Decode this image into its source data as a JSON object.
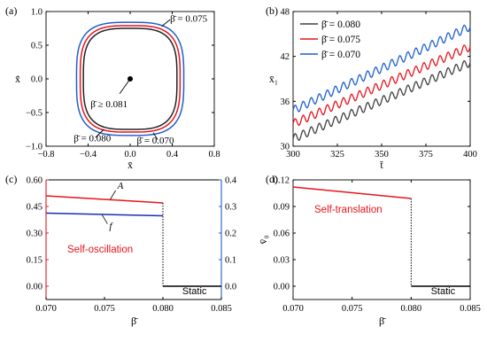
{
  "colors": {
    "red": "#e8141c",
    "blue": "#1f5fcc",
    "black": "#222222",
    "darkblue": "#1a2eb0",
    "gray": "#404040"
  },
  "panel_labels": [
    "(a)",
    "(b)",
    "(c)",
    "(d)"
  ],
  "chart_data": [
    {
      "panel": "(a)",
      "type": "line",
      "xlabel": "x̄",
      "ylabel": "x̄̇",
      "xlim": [
        -0.8,
        0.8
      ],
      "ylim": [
        -1.0,
        1.0
      ],
      "xticks": [
        "−0.8",
        "−0.4",
        "0.0",
        "0.4",
        "0.8"
      ],
      "yticks": [
        "−1.0",
        "−0.5",
        "0.0",
        "0.5",
        "1.0"
      ],
      "series": [
        {
          "name": "β̄ = 0.070",
          "color": "blue",
          "amplitude_x": 0.51,
          "amplitude_v": 0.84
        },
        {
          "name": "β̄ = 0.075",
          "color": "red",
          "amplitude_x": 0.475,
          "amplitude_v": 0.79
        },
        {
          "name": "β̄ = 0.080",
          "color": "black",
          "amplitude_x": 0.445,
          "amplitude_v": 0.75
        }
      ],
      "fixed_point": {
        "x": 0.0,
        "y": 0.0,
        "label": "β̄ ≥ 0.081"
      },
      "annotations": {
        "top": "β̄ = 0.075",
        "bottom_left": "β̄ = 0.080",
        "bottom_right": "β̄ = 0.070",
        "center": "β̄ ≥ 0.081"
      }
    },
    {
      "panel": "(b)",
      "type": "line",
      "xlabel": "t̄",
      "ylabel": "x̄₁",
      "xlim": [
        300,
        400
      ],
      "ylim": [
        30,
        48
      ],
      "xticks": [
        "300",
        "325",
        "350",
        "375",
        "400"
      ],
      "yticks": [
        "30",
        "36",
        "42",
        "48"
      ],
      "legend_position": "top-left",
      "series": [
        {
          "name": "β̄ = 0.080",
          "color": "gray",
          "start": 31.0,
          "end": 41.2,
          "wiggle": 0.55
        },
        {
          "name": "β̄ = 0.075",
          "color": "red",
          "start": 33.0,
          "end": 43.3,
          "wiggle": 0.55
        },
        {
          "name": "β̄ = 0.070",
          "color": "blue",
          "start": 34.8,
          "end": 46.0,
          "wiggle": 0.55
        }
      ],
      "periods": 22
    },
    {
      "panel": "(c)",
      "type": "line",
      "xlabel": "β̄",
      "ylabel_left": "A",
      "ylabel_right": "f",
      "xlim": [
        0.07,
        0.085
      ],
      "ylim_left": [
        -0.075,
        0.6
      ],
      "ylim_right": [
        -0.05,
        0.4
      ],
      "xticks": [
        "0.070",
        "0.075",
        "0.080",
        "0.085"
      ],
      "yticks_left": [
        "0.00",
        "0.15",
        "0.30",
        "0.45",
        "0.60"
      ],
      "yticks_right": [
        "0.0",
        "0.1",
        "0.2",
        "0.3",
        "0.4"
      ],
      "series": [
        {
          "name": "A",
          "color": "red",
          "axis": "left",
          "x": [
            0.07,
            0.08
          ],
          "y": [
            0.51,
            0.47
          ]
        },
        {
          "name": "f",
          "color": "darkblue",
          "axis": "right",
          "x": [
            0.07,
            0.08
          ],
          "y": [
            0.275,
            0.265
          ]
        }
      ],
      "static_line": {
        "x": [
          0.08,
          0.085
        ],
        "y": 0.0
      },
      "labels": {
        "regime": "Self-oscillation",
        "static": "Static",
        "A": "A",
        "f": "f"
      }
    },
    {
      "panel": "(d)",
      "type": "line",
      "xlabel": "β̄",
      "ylabel": "v̄₀",
      "xlim": [
        0.07,
        0.085
      ],
      "ylim": [
        -0.015,
        0.12
      ],
      "xticks": [
        "0.070",
        "0.075",
        "0.080",
        "0.085"
      ],
      "yticks": [
        "0.00",
        "0.03",
        "0.06",
        "0.09",
        "0.12"
      ],
      "series": [
        {
          "name": "v̄₀",
          "color": "red",
          "x": [
            0.07,
            0.08
          ],
          "y": [
            0.112,
            0.099
          ]
        }
      ],
      "static_line": {
        "x": [
          0.08,
          0.085
        ],
        "y": 0.0
      },
      "labels": {
        "regime": "Self-translation",
        "static": "Static"
      }
    }
  ]
}
